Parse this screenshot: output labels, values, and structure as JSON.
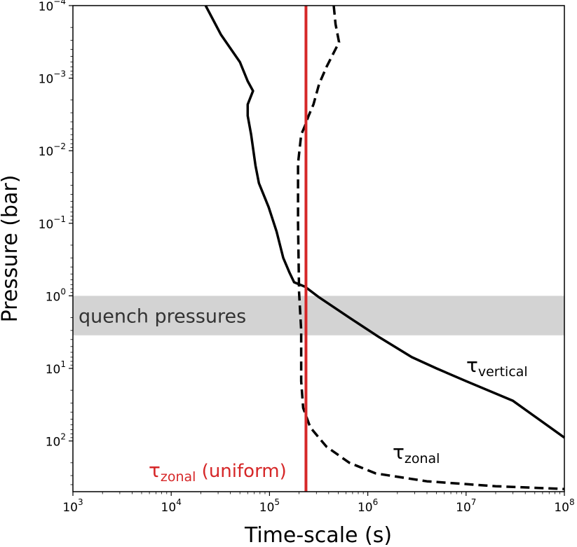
{
  "chart_data": {
    "type": "line",
    "xlabel": "Time-scale (s)",
    "ylabel": "Pressure (bar)",
    "xscale": "log",
    "yscale": "log",
    "y_inverted": true,
    "xlim": [
      1000,
      100000000
    ],
    "ylim": [
      0.0001,
      500
    ],
    "x_ticks": [
      {
        "value": 1000,
        "base": "10",
        "exp": "3"
      },
      {
        "value": 10000,
        "base": "10",
        "exp": "4"
      },
      {
        "value": 100000,
        "base": "10",
        "exp": "5"
      },
      {
        "value": 1000000,
        "base": "10",
        "exp": "6"
      },
      {
        "value": 10000000,
        "base": "10",
        "exp": "7"
      },
      {
        "value": 100000000,
        "base": "10",
        "exp": "8"
      }
    ],
    "y_ticks": [
      {
        "value": 0.0001,
        "base": "10",
        "exp": "−4"
      },
      {
        "value": 0.001,
        "base": "10",
        "exp": "−3"
      },
      {
        "value": 0.01,
        "base": "10",
        "exp": "−2"
      },
      {
        "value": 0.1,
        "base": "10",
        "exp": "−1"
      },
      {
        "value": 1,
        "base": "10",
        "exp": "0"
      },
      {
        "value": 10,
        "base": "10",
        "exp": "1"
      },
      {
        "value": 100,
        "base": "10",
        "exp": "2"
      }
    ],
    "band": {
      "y_range": [
        1,
        3.5
      ],
      "label": "quench pressures",
      "color": "#d3d3d3"
    },
    "vertical_line": {
      "x": 235000,
      "color": "#d62728",
      "label": "τ",
      "label_sub": "zonal",
      "label_suffix": " (uniform)"
    },
    "series": [
      {
        "id": "vertical",
        "label": "τ",
        "label_sub": "vertical",
        "style": "solid",
        "color": "#000000",
        "points": [
          [
            22400,
            0.0001
          ],
          [
            32000,
            0.00025
          ],
          [
            50000,
            0.0006
          ],
          [
            60000,
            0.0011
          ],
          [
            68000,
            0.0015
          ],
          [
            60000,
            0.0023
          ],
          [
            60000,
            0.0033
          ],
          [
            65000,
            0.006
          ],
          [
            72000,
            0.016
          ],
          [
            78000,
            0.028
          ],
          [
            98000,
            0.06
          ],
          [
            118000,
            0.13
          ],
          [
            138000,
            0.3
          ],
          [
            160000,
            0.48
          ],
          [
            178000,
            0.65
          ],
          [
            230000,
            0.75
          ],
          [
            320000,
            1.05
          ],
          [
            650000,
            2.0
          ],
          [
            1300000,
            3.7
          ],
          [
            2800000,
            7.0
          ],
          [
            5000000,
            10.0
          ],
          [
            10000000,
            15.0
          ],
          [
            30000000,
            28.0
          ],
          [
            100000000,
            90.0
          ]
        ]
      },
      {
        "id": "zonal",
        "label": "τ",
        "label_sub": "zonal",
        "style": "dashed",
        "color": "#000000",
        "points": [
          [
            450000,
            0.0001
          ],
          [
            470000,
            0.00018
          ],
          [
            510000,
            0.00032
          ],
          [
            380000,
            0.0007
          ],
          [
            320000,
            0.0012
          ],
          [
            280000,
            0.0023
          ],
          [
            250000,
            0.0033
          ],
          [
            230000,
            0.0045
          ],
          [
            210000,
            0.006
          ],
          [
            195000,
            0.015
          ],
          [
            195000,
            0.1
          ],
          [
            200000,
            0.9
          ],
          [
            210000,
            3.0
          ],
          [
            210000,
            15.0
          ],
          [
            220000,
            35.0
          ],
          [
            260000,
            65.0
          ],
          [
            380000,
            120.0
          ],
          [
            650000,
            200.0
          ],
          [
            1200000,
            280.0
          ],
          [
            4000000,
            360.0
          ],
          [
            20000000,
            420.0
          ],
          [
            100000000,
            460.0
          ]
        ]
      }
    ]
  }
}
